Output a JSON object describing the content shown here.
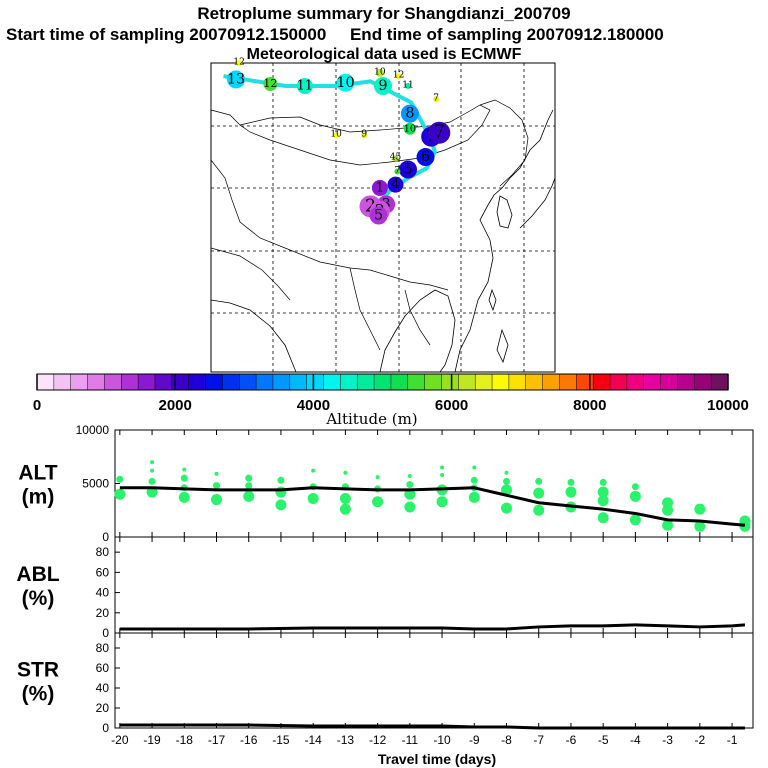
{
  "header": {
    "title": "Retroplume summary for Shangdianzi_200709",
    "start_label": "Start time of sampling 20070912.150000",
    "end_label": "End time of sampling 20070912.180000",
    "met_label": "Meteorological data used is ECMWF"
  },
  "colorbar": {
    "colors": [
      "#fbe3fb",
      "#f4c3f5",
      "#ec9ef0",
      "#e07be8",
      "#cc55e0",
      "#b030d8",
      "#8c18d4",
      "#6008cc",
      "#3a00c8",
      "#2000d8",
      "#0010e8",
      "#0030f0",
      "#0050f8",
      "#0078fc",
      "#0098fc",
      "#00b8fc",
      "#00d8fc",
      "#00f4f0",
      "#00f4c8",
      "#00ec9c",
      "#00e474",
      "#10e050",
      "#40e030",
      "#70e020",
      "#98e020",
      "#c0e820",
      "#e4f020",
      "#fcfc00",
      "#fce000",
      "#fcc000",
      "#fca000",
      "#fc7800",
      "#fc4800",
      "#f80010",
      "#f40050",
      "#f00080",
      "#e800a0",
      "#d8009c",
      "#b80090",
      "#980078",
      "#701060"
    ],
    "ticks": [
      "0",
      "2000",
      "4000",
      "6000",
      "8000",
      "10000"
    ],
    "tick_values": [
      0,
      2000,
      4000,
      6000,
      8000,
      10000
    ],
    "label": "Altitude (m)"
  },
  "map": {
    "track": [
      {
        "lon": 92.0,
        "lat": 55.0
      },
      {
        "lon": 102.0,
        "lat": 53.5
      },
      {
        "lon": 110.0,
        "lat": 53.5
      },
      {
        "lon": 115.5,
        "lat": 54.2
      },
      {
        "lon": 122.0,
        "lat": 51.0
      },
      {
        "lon": 124.0,
        "lat": 47.5
      },
      {
        "lon": 125.3,
        "lat": 45.0
      },
      {
        "lon": 125.8,
        "lat": 43.5
      },
      {
        "lon": 124.5,
        "lat": 41.0
      },
      {
        "lon": 121.5,
        "lat": 39.5
      },
      {
        "lon": 118.5,
        "lat": 37.5
      },
      {
        "lon": 117.0,
        "lat": 35.8
      },
      {
        "lon": 117.0,
        "lat": 34.0
      }
    ],
    "markers": [
      {
        "label": "13",
        "lon": 94.0,
        "lat": 54.5,
        "alt": 4100,
        "size": 9
      },
      {
        "label": "12",
        "lon": 99.5,
        "lat": 53.8,
        "alt": 5600,
        "size": 7
      },
      {
        "label": "11",
        "lon": 105.0,
        "lat": 53.5,
        "alt": 4500,
        "size": 8
      },
      {
        "label": "10",
        "lon": 111.5,
        "lat": 54.0,
        "alt": 4200,
        "size": 9
      },
      {
        "label": "9",
        "lon": 117.5,
        "lat": 53.5,
        "alt": 4400,
        "size": 9
      },
      {
        "label": "8",
        "lon": 121.8,
        "lat": 49.3,
        "alt": 3600,
        "size": 9
      },
      {
        "label": "7",
        "lon": 125.2,
        "lat": 45.8,
        "alt": 2200,
        "size": 10
      },
      {
        "label": "7",
        "lon": 126.5,
        "lat": 46.4,
        "alt": 2000,
        "size": 11
      },
      {
        "label": "6",
        "lon": 124.3,
        "lat": 42.7,
        "alt": 2500,
        "size": 9
      },
      {
        "label": "5",
        "lon": 121.5,
        "lat": 40.8,
        "alt": 2400,
        "size": 9
      },
      {
        "label": "4",
        "lon": 119.5,
        "lat": 38.5,
        "alt": 2300,
        "size": 8
      },
      {
        "label": "3",
        "lon": 118.0,
        "lat": 35.5,
        "alt": 1300,
        "size": 9
      },
      {
        "label": "2",
        "lon": 115.5,
        "lat": 35.2,
        "alt": 1200,
        "size": 11
      },
      {
        "label": "2",
        "lon": 117.0,
        "lat": 34.5,
        "alt": 1200,
        "size": 10
      },
      {
        "label": "1",
        "lon": 117.0,
        "lat": 38.0,
        "alt": 1500,
        "size": 8
      },
      {
        "label": "5",
        "lon": 116.8,
        "lat": 33.8,
        "alt": 1400,
        "size": 9
      },
      {
        "label": "10",
        "lon": 121.8,
        "lat": 47.0,
        "alt": 5200,
        "size": 6
      },
      {
        "label": "10",
        "lon": 117.0,
        "lat": 55.5,
        "alt": 6200,
        "size": 4
      },
      {
        "label": "12",
        "lon": 120.0,
        "lat": 55.0,
        "alt": 6700,
        "size": 3
      },
      {
        "label": "11",
        "lon": 121.5,
        "lat": 53.5,
        "alt": 4800,
        "size": 3
      },
      {
        "label": "7",
        "lon": 126.0,
        "lat": 51.5,
        "alt": 6500,
        "size": 3
      },
      {
        "label": "10",
        "lon": 110.0,
        "lat": 46.0,
        "alt": 6600,
        "size": 3
      },
      {
        "label": "9",
        "lon": 114.5,
        "lat": 46.0,
        "alt": 6400,
        "size": 3
      },
      {
        "label": "45",
        "lon": 119.5,
        "lat": 42.5,
        "alt": 5900,
        "size": 3
      },
      {
        "label": "7",
        "lon": 119.8,
        "lat": 40.5,
        "alt": 5600,
        "size": 3
      },
      {
        "label": "12",
        "lon": 94.5,
        "lat": 57.0,
        "alt": 6600,
        "size": 3
      }
    ]
  },
  "panels": {
    "alt": {
      "label_line1": "ALT",
      "label_line2": "(m)",
      "yticks": [
        "10000",
        "5000",
        "0"
      ],
      "ytick_values": [
        10000,
        5000,
        0
      ],
      "ymax": 10000
    },
    "abl": {
      "label_line1": "ABL",
      "label_line2": "(%)",
      "yticks": [
        "80",
        "60",
        "40",
        "20",
        "0"
      ],
      "ytick_values": [
        80,
        60,
        40,
        20,
        0
      ],
      "ymax": 95
    },
    "str": {
      "label_line1": "STR",
      "label_line2": "(%)",
      "yticks": [
        "80",
        "60",
        "40",
        "20",
        "0"
      ],
      "ytick_values": [
        80,
        60,
        40,
        20,
        0
      ],
      "ymax": 95
    }
  },
  "chart_data": [
    {
      "type": "line",
      "title": "ALT",
      "xlabel": "Travel time (days)",
      "ylabel": "ALT (m)",
      "ylim": [
        0,
        10000
      ],
      "x": [
        -20,
        -19,
        -18,
        -17,
        -16,
        -15,
        -14,
        -13,
        -12,
        -11,
        -10,
        -9,
        -8,
        -7,
        -6,
        -5,
        -4,
        -3,
        -2,
        -1,
        -0.6
      ],
      "series": [
        {
          "name": "mean altitude",
          "values": [
            4600,
            4600,
            4500,
            4400,
            4400,
            4400,
            4600,
            4500,
            4400,
            4400,
            4500,
            4600,
            3900,
            3200,
            2900,
            2600,
            2200,
            1600,
            1500,
            1200,
            1100
          ]
        },
        {
          "name": "cluster altitude (dots)",
          "points": [
            {
              "x": -20,
              "y": 4000
            },
            {
              "x": -20,
              "y": 5400
            },
            {
              "x": -19,
              "y": 4200
            },
            {
              "x": -19,
              "y": 5200
            },
            {
              "x": -19,
              "y": 6200
            },
            {
              "x": -19,
              "y": 7000
            },
            {
              "x": -18,
              "y": 3700
            },
            {
              "x": -18,
              "y": 4600
            },
            {
              "x": -18,
              "y": 5500
            },
            {
              "x": -18,
              "y": 6300
            },
            {
              "x": -17,
              "y": 3500
            },
            {
              "x": -17,
              "y": 4800
            },
            {
              "x": -17,
              "y": 5900
            },
            {
              "x": -16,
              "y": 3800
            },
            {
              "x": -16,
              "y": 4800
            },
            {
              "x": -16,
              "y": 5500
            },
            {
              "x": -15,
              "y": 3000
            },
            {
              "x": -15,
              "y": 4200
            },
            {
              "x": -15,
              "y": 5300
            },
            {
              "x": -14,
              "y": 3600
            },
            {
              "x": -14,
              "y": 4700
            },
            {
              "x": -14,
              "y": 6200
            },
            {
              "x": -13,
              "y": 2600
            },
            {
              "x": -13,
              "y": 3600
            },
            {
              "x": -13,
              "y": 4700
            },
            {
              "x": -13,
              "y": 6000
            },
            {
              "x": -12,
              "y": 3300
            },
            {
              "x": -12,
              "y": 4500
            },
            {
              "x": -12,
              "y": 5600
            },
            {
              "x": -11,
              "y": 2800
            },
            {
              "x": -11,
              "y": 4000
            },
            {
              "x": -11,
              "y": 4900
            },
            {
              "x": -11,
              "y": 5700
            },
            {
              "x": -10,
              "y": 3300
            },
            {
              "x": -10,
              "y": 4400
            },
            {
              "x": -10,
              "y": 5800
            },
            {
              "x": -10,
              "y": 6500
            },
            {
              "x": -9,
              "y": 3700
            },
            {
              "x": -9,
              "y": 4600
            },
            {
              "x": -9,
              "y": 5300
            },
            {
              "x": -9,
              "y": 6500
            },
            {
              "x": -8,
              "y": 2700
            },
            {
              "x": -8,
              "y": 4400
            },
            {
              "x": -8,
              "y": 5200
            },
            {
              "x": -8,
              "y": 6000
            },
            {
              "x": -7,
              "y": 2500
            },
            {
              "x": -7,
              "y": 4100
            },
            {
              "x": -7,
              "y": 5200
            },
            {
              "x": -6,
              "y": 2800
            },
            {
              "x": -6,
              "y": 4200
            },
            {
              "x": -6,
              "y": 5100
            },
            {
              "x": -5,
              "y": 1800
            },
            {
              "x": -5,
              "y": 3400
            },
            {
              "x": -5,
              "y": 4200
            },
            {
              "x": -5,
              "y": 5100
            },
            {
              "x": -4,
              "y": 1600
            },
            {
              "x": -4,
              "y": 3800
            },
            {
              "x": -4,
              "y": 4700
            },
            {
              "x": -3,
              "y": 1100
            },
            {
              "x": -3,
              "y": 2500
            },
            {
              "x": -3,
              "y": 3200
            },
            {
              "x": -2,
              "y": 1000
            },
            {
              "x": -2,
              "y": 2600
            },
            {
              "x": -0.6,
              "y": 1000
            },
            {
              "x": -0.6,
              "y": 1500
            }
          ]
        }
      ]
    },
    {
      "type": "line",
      "title": "ABL",
      "xlabel": "Travel time (days)",
      "ylabel": "ABL (%)",
      "ylim": [
        0,
        95
      ],
      "x": [
        -20,
        -18,
        -16,
        -14,
        -12,
        -10,
        -9,
        -8,
        -7,
        -6,
        -5,
        -4,
        -3,
        -2,
        -1,
        -0.6
      ],
      "series": [
        {
          "name": "ABL",
          "values": [
            4,
            4,
            4,
            5,
            5,
            5,
            4,
            4,
            6,
            7,
            7,
            8,
            7,
            6,
            7,
            8
          ]
        }
      ]
    },
    {
      "type": "line",
      "title": "STR",
      "xlabel": "Travel time (days)",
      "ylabel": "STR (%)",
      "ylim": [
        0,
        95
      ],
      "x": [
        -20,
        -18,
        -16,
        -14,
        -12,
        -10,
        -9,
        -8,
        -7,
        -6,
        -5,
        -4,
        -3,
        -2,
        -1,
        -0.6
      ],
      "series": [
        {
          "name": "STR",
          "values": [
            3,
            3,
            3,
            2,
            2,
            2,
            1,
            1,
            0,
            0,
            0,
            0,
            0,
            0,
            0,
            0
          ]
        }
      ]
    }
  ],
  "xaxis": {
    "ticks": [
      "-20",
      "-19",
      "-18",
      "-17",
      "-16",
      "-15",
      "-14",
      "-13",
      "-12",
      "-11",
      "-10",
      "-9",
      "-8",
      "-7",
      "-6",
      "-5",
      "-4",
      "-3",
      "-2",
      "-1"
    ],
    "tick_values": [
      -20,
      -19,
      -18,
      -17,
      -16,
      -15,
      -14,
      -13,
      -12,
      -11,
      -10,
      -9,
      -8,
      -7,
      -6,
      -5,
      -4,
      -3,
      -2,
      -1
    ],
    "xmin": -20.15,
    "xmax": -0.35,
    "label": "Travel time (days)"
  }
}
